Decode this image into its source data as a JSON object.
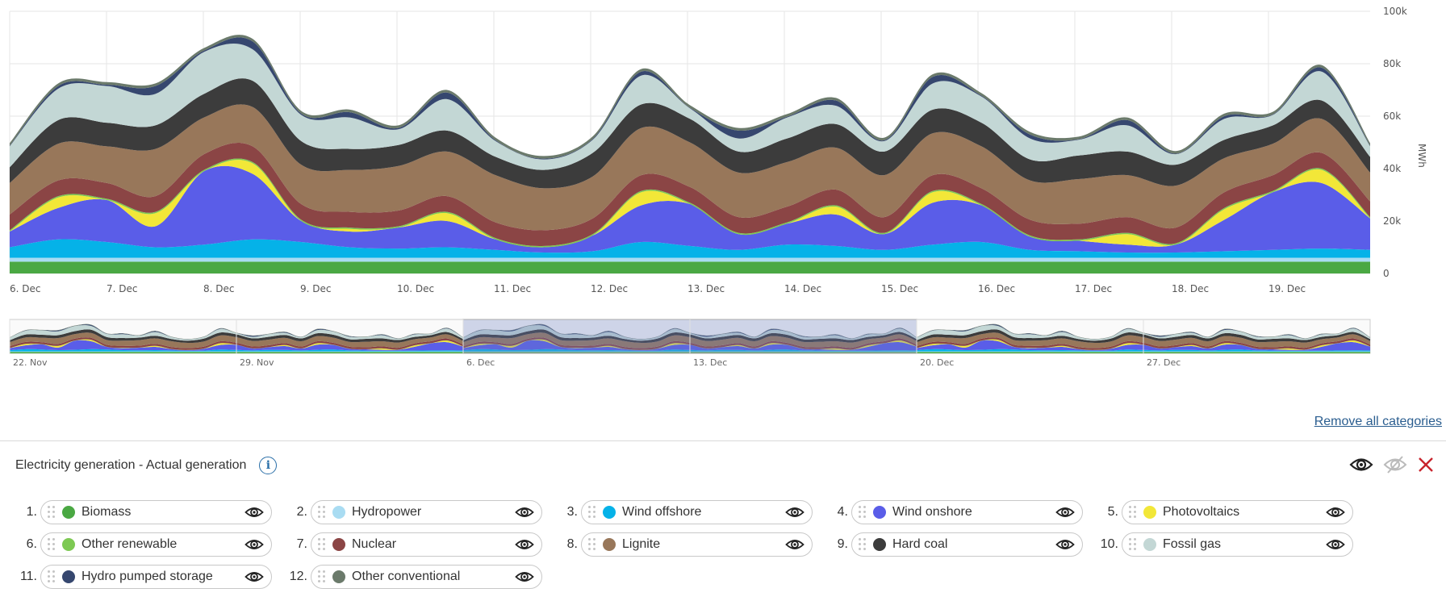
{
  "chart_data": {
    "type": "area",
    "stacked": true,
    "x_tick_labels": [
      "6. Dec",
      "7. Dec",
      "8. Dec",
      "9. Dec",
      "10. Dec",
      "11. Dec",
      "12. Dec",
      "13. Dec",
      "14. Dec",
      "15. Dec",
      "16. Dec",
      "17. Dec",
      "18. Dec",
      "19. Dec"
    ],
    "y_tick_labels": [
      "0",
      "20k",
      "40k",
      "60k",
      "80k",
      "100k"
    ],
    "ylim": [
      0,
      100000
    ],
    "ylabel": "MWh",
    "grid": true,
    "x": [
      "6. Dec",
      "6. Dec",
      "7. Dec",
      "7. Dec",
      "8. Dec",
      "8. Dec",
      "9. Dec",
      "9. Dec",
      "10. Dec",
      "10. Dec",
      "11. Dec",
      "11. Dec",
      "12. Dec",
      "12. Dec",
      "13. Dec",
      "13. Dec",
      "14. Dec",
      "14. Dec",
      "15. Dec",
      "15. Dec",
      "16. Dec",
      "16. Dec",
      "17. Dec",
      "17. Dec",
      "18. Dec",
      "18. Dec",
      "19. Dec",
      "19. Dec",
      "20. Dec"
    ],
    "series": [
      {
        "name": "Biomass",
        "color": "#4aa843",
        "values": [
          4500,
          4500,
          4500,
          4500,
          4500,
          4500,
          4500,
          4500,
          4500,
          4500,
          4500,
          4500,
          4500,
          4500,
          4500,
          4500,
          4500,
          4500,
          4500,
          4500,
          4500,
          4500,
          4500,
          4500,
          4500,
          4500,
          4500,
          4500,
          4500
        ]
      },
      {
        "name": "Hydropower",
        "color": "#a9dcf2",
        "values": [
          1500,
          1500,
          1500,
          1500,
          1500,
          1500,
          1500,
          1500,
          1500,
          1500,
          1500,
          1500,
          1500,
          1500,
          1500,
          1500,
          1500,
          1500,
          1500,
          1500,
          1500,
          1500,
          1500,
          1500,
          1500,
          1500,
          1500,
          1500,
          1500
        ]
      },
      {
        "name": "Wind offshore",
        "color": "#05b2e8",
        "values": [
          4000,
          7000,
          6000,
          4000,
          5000,
          7000,
          6000,
          4000,
          3500,
          4000,
          3000,
          2000,
          2500,
          6000,
          4500,
          3000,
          5000,
          4500,
          3000,
          5000,
          6000,
          3000,
          2500,
          2000,
          2000,
          2500,
          3000,
          3500,
          3000
        ]
      },
      {
        "name": "Wind onshore",
        "color": "#5a5de8",
        "values": [
          6000,
          12000,
          16000,
          8000,
          28000,
          25000,
          8000,
          6000,
          8000,
          10000,
          4000,
          2000,
          6000,
          14000,
          16000,
          6000,
          8000,
          12000,
          6000,
          16000,
          14000,
          5000,
          4000,
          3000,
          3000,
          12000,
          22000,
          25000,
          12000
        ]
      },
      {
        "name": "Photovoltaics",
        "color": "#f2e738",
        "values": [
          0,
          4000,
          0,
          5000,
          0,
          4000,
          0,
          1000,
          0,
          3000,
          0,
          0,
          0,
          5000,
          0,
          0,
          0,
          3000,
          0,
          4000,
          0,
          0,
          0,
          4000,
          0,
          4000,
          0,
          5000,
          0
        ]
      },
      {
        "name": "Other renewable",
        "color": "#7dc953",
        "values": [
          500,
          500,
          500,
          500,
          500,
          500,
          500,
          500,
          500,
          500,
          500,
          500,
          500,
          500,
          500,
          500,
          500,
          500,
          500,
          500,
          500,
          500,
          500,
          500,
          500,
          500,
          500,
          500,
          500
        ]
      },
      {
        "name": "Nuclear",
        "color": "#8b4545",
        "values": [
          6000,
          6000,
          6000,
          6000,
          6000,
          6000,
          6000,
          6000,
          6000,
          6000,
          6000,
          6000,
          6000,
          6000,
          6000,
          6000,
          6000,
          6000,
          6000,
          6000,
          6000,
          6000,
          6000,
          6000,
          6000,
          6000,
          6000,
          6000,
          6000
        ]
      },
      {
        "name": "Lignite",
        "color": "#98775a",
        "values": [
          12000,
          14000,
          14000,
          18000,
          14000,
          15000,
          15000,
          16000,
          17000,
          17000,
          18000,
          16000,
          16000,
          18000,
          17000,
          17000,
          17000,
          16000,
          16000,
          16000,
          16000,
          15000,
          17000,
          16000,
          16000,
          13000,
          12000,
          13000,
          11000
        ]
      },
      {
        "name": "Hard coal",
        "color": "#3c3c3c",
        "values": [
          6000,
          9000,
          9000,
          9000,
          9000,
          10000,
          9000,
          8000,
          8000,
          8000,
          7000,
          7000,
          9000,
          9000,
          9000,
          8000,
          9000,
          9000,
          9000,
          9000,
          9000,
          8000,
          9000,
          9000,
          8000,
          7000,
          7000,
          7000,
          6000
        ]
      },
      {
        "name": "Fossil gas",
        "color": "#c3d7d5",
        "values": [
          8000,
          12000,
          14000,
          12000,
          16000,
          12000,
          10000,
          12000,
          6000,
          12000,
          6000,
          4000,
          5000,
          11000,
          4000,
          5000,
          8000,
          7000,
          4000,
          10000,
          10000,
          8000,
          6000,
          10000,
          4000,
          8000,
          4000,
          11000,
          4000
        ]
      },
      {
        "name": "Hydro pumped storage",
        "color": "#36476f",
        "values": [
          200,
          1000,
          500,
          3000,
          500,
          3000,
          500,
          2000,
          500,
          2500,
          300,
          300,
          300,
          1500,
          200,
          3000,
          300,
          2000,
          300,
          2500,
          300,
          1500,
          200,
          2000,
          200,
          1000,
          200,
          1500,
          200
        ]
      },
      {
        "name": "Other conventional",
        "color": "#6b7a6b",
        "values": [
          1000,
          1000,
          1000,
          1000,
          1000,
          1000,
          1000,
          1000,
          1000,
          1000,
          1000,
          1000,
          1000,
          1000,
          1000,
          1000,
          1000,
          1000,
          1000,
          1000,
          1000,
          1000,
          1000,
          1000,
          1000,
          1000,
          1000,
          1000,
          1000
        ]
      }
    ],
    "navigator": {
      "tick_labels": [
        "22. Nov",
        "29. Nov",
        "6. Dec",
        "13. Dec",
        "20. Dec",
        "27. Dec"
      ],
      "selected_range": [
        "6. Dec",
        "20. Dec"
      ]
    }
  },
  "remove_all_label": "Remove all categories",
  "panel": {
    "title": "Electricity generation - Actual generation",
    "info_icon": "i"
  },
  "icons": {
    "eye": "eye-icon",
    "eye_off": "eye-off-icon",
    "close": "close-icon",
    "info": "info-icon",
    "drag": "drag-handle-icon"
  },
  "legend": [
    {
      "num": "1.",
      "label": "Biomass",
      "color": "#4aa843"
    },
    {
      "num": "2.",
      "label": "Hydropower",
      "color": "#a9dcf2"
    },
    {
      "num": "3.",
      "label": "Wind offshore",
      "color": "#05b2e8"
    },
    {
      "num": "4.",
      "label": "Wind onshore",
      "color": "#5a5de8"
    },
    {
      "num": "5.",
      "label": "Photovoltaics",
      "color": "#f2e738"
    },
    {
      "num": "6.",
      "label": "Other renewable",
      "color": "#7dc953"
    },
    {
      "num": "7.",
      "label": "Nuclear",
      "color": "#8b4545"
    },
    {
      "num": "8.",
      "label": "Lignite",
      "color": "#98775a"
    },
    {
      "num": "9.",
      "label": "Hard coal",
      "color": "#3c3c3c"
    },
    {
      "num": "10.",
      "label": "Fossil gas",
      "color": "#c3d7d5"
    },
    {
      "num": "11.",
      "label": "Hydro pumped storage",
      "color": "#36476f"
    },
    {
      "num": "12.",
      "label": "Other conventional",
      "color": "#6b7a6b"
    }
  ]
}
